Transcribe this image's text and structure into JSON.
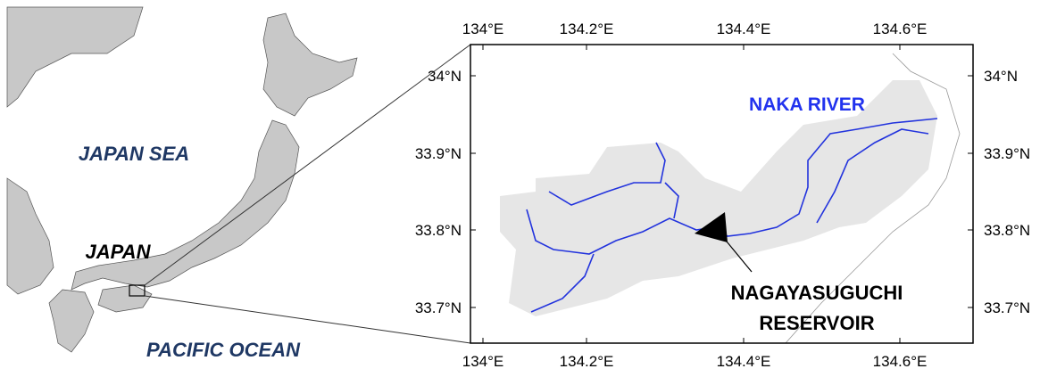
{
  "map": {
    "left_labels": {
      "sea_north": "JAPAN SEA",
      "country": "JAPAN",
      "sea_south": "PACIFIC OCEAN"
    },
    "lon_ticks": [
      "134°E",
      "134.2°E",
      "134.4°E",
      "134.6°E"
    ],
    "lat_ticks": [
      "34°N",
      "33.9°N",
      "33.8°N",
      "33.7°N"
    ],
    "river_label": "NAKA RIVER",
    "reservoir_label": [
      "NAGAYASUGUCHI",
      "RESERVOIR"
    ]
  }
}
